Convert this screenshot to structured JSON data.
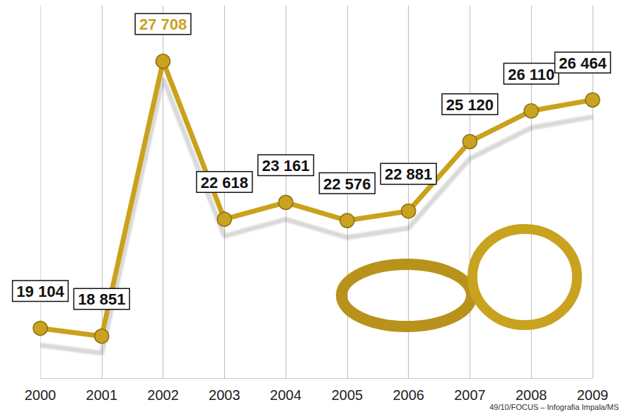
{
  "chart_data": {
    "type": "line",
    "categories": [
      "2000",
      "2001",
      "2002",
      "2003",
      "2004",
      "2005",
      "2006",
      "2007",
      "2008",
      "2009"
    ],
    "values": [
      19104,
      18851,
      27708,
      22618,
      23161,
      22576,
      22881,
      25120,
      26110,
      26464
    ],
    "value_labels": [
      "19 104",
      "18 851",
      "27 708",
      "22 618",
      "23 161",
      "22 576",
      "22 881",
      "25 120",
      "26 110",
      "26 464"
    ],
    "color": "#c9a21f",
    "ylim": [
      17500,
      29500
    ],
    "grid": true,
    "data_labels": true,
    "tick_labels": "x",
    "marker": "circle",
    "source": "49/10/FOCUS – Infografia Impala/MS"
  }
}
